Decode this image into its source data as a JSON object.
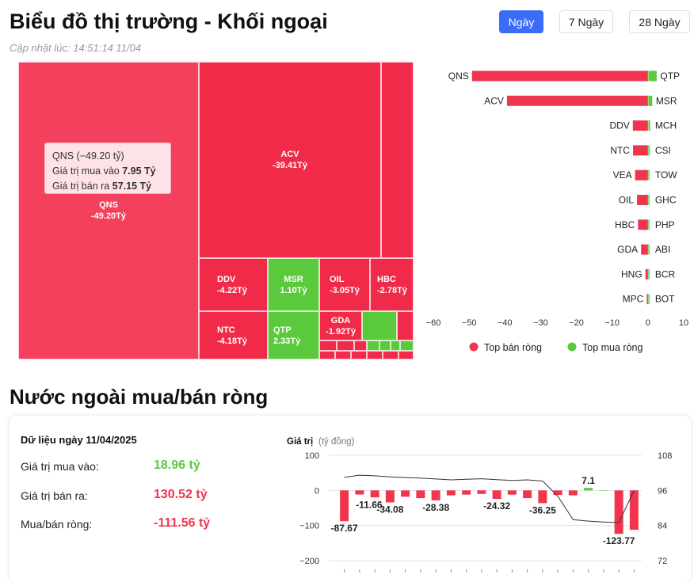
{
  "header": {
    "title": "Biểu đồ thị trường - Khối ngoại",
    "updated": "Cập nhật lúc: 14:51:14 11/04",
    "tabs": [
      {
        "label": "Ngày",
        "active": true
      },
      {
        "label": "7 Ngày",
        "active": false
      },
      {
        "label": "28 Ngày",
        "active": false
      }
    ]
  },
  "treemap": {
    "tiles": [
      {
        "code": "QNS",
        "value": "-49.20Tỷ"
      },
      {
        "code": "ACV",
        "value": "-39.41Tỷ"
      },
      {
        "code": "DDV",
        "value": "-4.22Tỷ"
      },
      {
        "code": "MSR",
        "value": "1.10Tỷ"
      },
      {
        "code": "OIL",
        "value": "-3.05Tỷ"
      },
      {
        "code": "HBC",
        "value": "-2.78Tỷ"
      },
      {
        "code": "NTC",
        "value": "-4.18Tỷ"
      },
      {
        "code": "QTP",
        "value": "2.33Tỷ"
      },
      {
        "code": "GDA",
        "value": "-1.92Tỷ"
      }
    ],
    "tooltip": {
      "title": "QNS (−49.20 tỷ)",
      "buy_label": "Giá trị mua vào",
      "buy_value": "7.95 Tỷ",
      "sell_label": "Giá trị bán ra",
      "sell_value": "57.15 Tỷ"
    }
  },
  "chart_data": [
    {
      "type": "bar",
      "orientation": "horizontal",
      "sell_labels": [
        "QNS",
        "ACV",
        "DDV",
        "NTC",
        "VEA",
        "OIL",
        "HBC",
        "GDA",
        "HNG",
        "MPC"
      ],
      "sell_values": [
        -49.2,
        -39.41,
        -4.22,
        -4.18,
        -3.6,
        -3.05,
        -2.78,
        -1.92,
        -0.7,
        -0.15
      ],
      "buy_labels": [
        "QTP",
        "MSR",
        "MCH",
        "CSI",
        "TOW",
        "GHC",
        "PHP",
        "ABI",
        "BCR",
        "BOT"
      ],
      "buy_values": [
        2.33,
        1.1,
        0.5,
        0.4,
        0.3,
        0.2,
        0.15,
        0.1,
        0.05,
        0.02
      ],
      "xlim": [
        -60,
        10
      ],
      "xticks": [
        -60,
        -50,
        -40,
        -30,
        -20,
        -10,
        0,
        10
      ],
      "legend": [
        {
          "label": "Top bán ròng",
          "color": "#f2354f"
        },
        {
          "label": "Top mua ròng",
          "color": "#5ac93b"
        }
      ],
      "legend_position": "bottom"
    },
    {
      "type": "bar",
      "title": "Giá trị",
      "subtitle": "(tỷ đồng)",
      "values": [
        -87.67,
        -11.66,
        -20,
        -34.08,
        -18,
        -22,
        -28.38,
        -14,
        -12,
        -10,
        -24.32,
        -12,
        -22,
        -36.25,
        -13,
        -14,
        7.1,
        0,
        -123.77,
        -112
      ],
      "data_labels": {
        "0": "-87.67",
        "1": "-11.66",
        "3": "-34.08",
        "6": "-28.38",
        "10": "-24.32",
        "13": "-36.25",
        "16": "7.1",
        "18": "-123.77"
      },
      "line_values": [
        100.5,
        101.2,
        101,
        100.6,
        100.4,
        100.2,
        99.9,
        99.6,
        99.8,
        100,
        99.7,
        99.4,
        99.6,
        99.2,
        94,
        86,
        85.5,
        85.2,
        85,
        96
      ],
      "ylim": [
        -200,
        100
      ],
      "yticks": [
        100,
        0,
        -100,
        -200
      ],
      "y2lim": [
        72,
        108
      ],
      "y2ticks": [
        108,
        96,
        84,
        72
      ],
      "colors": {
        "positive": "#5ac93b",
        "negative": "#f2354f",
        "line": "#333333"
      }
    }
  ],
  "summary": {
    "heading": "Nước ngoài mua/bán ròng",
    "date": "Dữ liệu ngày 11/04/2025",
    "buy_label": "Giá trị mua vào:",
    "buy_value": "18.96 tỷ",
    "sell_label": "Giá trị bán ra:",
    "sell_value": "130.52 tỷ",
    "net_label": "Mua/bán ròng:",
    "net_value": "-111.56 tỷ"
  }
}
